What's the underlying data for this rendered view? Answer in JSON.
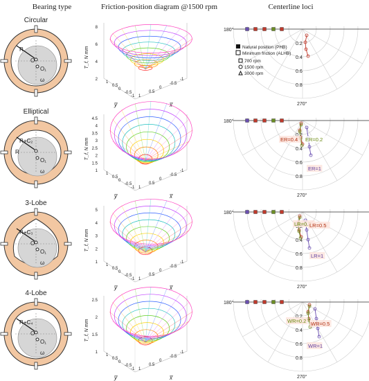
{
  "headers": {
    "bearing": "Bearing type",
    "friction": "Friction-position diagram @1500 rpm",
    "loci": "Centerline loci"
  },
  "rows": [
    {
      "label": "(a)",
      "title": "Circular",
      "r1": "R",
      "r2": "O",
      "r3": "O₁",
      "omega": "ω",
      "zticks": [
        "8",
        "6",
        "4",
        "2"
      ],
      "annot": []
    },
    {
      "label": "(b)",
      "title": "Elliptical",
      "r1": "R+C₂",
      "r2": "R",
      "r3": "O₁",
      "omega": "ω",
      "zticks": [
        "4.5",
        "4",
        "3.5",
        "3",
        "2.5",
        "2",
        "1.5",
        "1"
      ],
      "annot": [
        {
          "t": "ER=0.4",
          "c": "#b03010"
        },
        {
          "t": "ER=0.2",
          "c": "#6a8a10"
        },
        {
          "t": "ER=1",
          "c": "#6040a0"
        }
      ]
    },
    {
      "label": "(c)",
      "title": "3-Lobe",
      "r1": "R+C₃",
      "r2": "O",
      "r3": "O₁",
      "omega": "ω",
      "zticks": [
        "5",
        "4",
        "3",
        "2",
        "1"
      ],
      "annot": [
        {
          "t": "LR=0.2",
          "c": "#6a8a10"
        },
        {
          "t": "LR=0.5",
          "c": "#b03010"
        },
        {
          "t": "LR=1",
          "c": "#6040a0"
        }
      ]
    },
    {
      "label": "(d)",
      "title": "4-Lobe",
      "r1": "R+C₄",
      "r2": "O",
      "r3": "O₁",
      "omega": "ω",
      "zticks": [
        "2.5",
        "2",
        "1.5",
        "1"
      ],
      "annot": [
        {
          "t": "WR=0.2",
          "c": "#6a8a10"
        },
        {
          "t": "WR=0.5",
          "c": "#b03010"
        },
        {
          "t": "WR=1",
          "c": "#6040a0"
        }
      ]
    }
  ],
  "plot3d": {
    "zlabel": "T_f, N mm",
    "xlabel": "x̅",
    "ylabel": "y̅",
    "xy_ticks": [
      "1",
      "0.5",
      "0",
      "-0.5",
      "-1"
    ]
  },
  "polar": {
    "angle_180": "180°",
    "angle_0": "0°",
    "angle_270": "270°",
    "rticks": [
      "0.2",
      "0.4",
      "0.6",
      "0.8"
    ]
  },
  "legend": {
    "natural": "Natural position (PHB)",
    "minimum": "Minimum friction (ALHB)",
    "rpm700": "700 rpm",
    "rpm1500": "1500 rpm",
    "rpm3000": "3000 rpm"
  },
  "colors": {
    "ring": "#f2c7a2",
    "ring_stroke": "#333",
    "shaft": "#d6d6d6",
    "loci_red": "#c0392b",
    "loci_olive": "#6b8e23",
    "loci_purple": "#6a4fb0"
  }
}
